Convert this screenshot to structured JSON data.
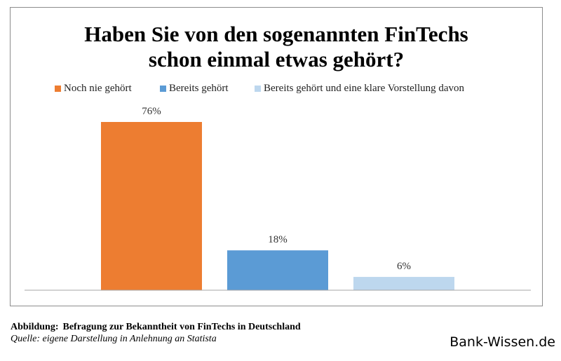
{
  "chart_data": {
    "type": "bar",
    "title": [
      "Haben Sie von den sogenannten FinTechs",
      "schon einmal etwas gehört?"
    ],
    "categories": [
      "Noch nie gehört",
      "Bereits gehört",
      "Bereits gehört und eine klare Vorstellung davon"
    ],
    "values": [
      76,
      18,
      6
    ],
    "data_labels": [
      "76%",
      "18%",
      "6%"
    ],
    "colors": [
      "#ed7d31",
      "#5b9bd5",
      "#bdd7ee"
    ],
    "ylim": [
      0,
      76
    ],
    "grid": false,
    "legend_position": "top"
  },
  "caption": {
    "label": "Abbildung:",
    "text": "Befragung zur Bekanntheit von FinTechs in Deutschland",
    "source": "Quelle: eigene Darstellung in Anlehnung an Statista"
  },
  "brand": "Bank-Wissen.de"
}
